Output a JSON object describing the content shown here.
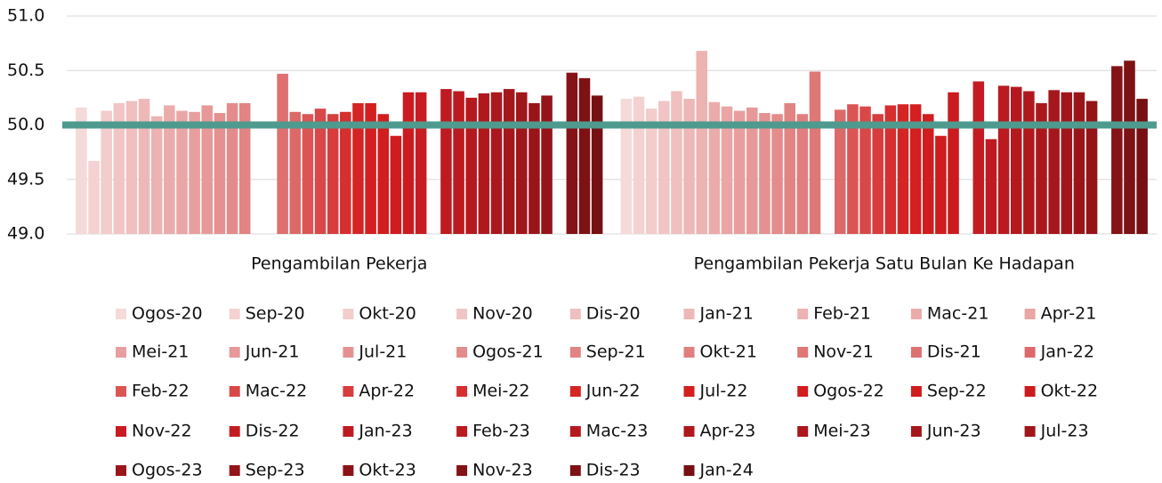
{
  "chart_data": {
    "type": "bar",
    "categories": [
      "Pengambilan Pekerja",
      "Pengambilan Pekerja Satu Bulan Ke Hadapan"
    ],
    "ylim": [
      49.0,
      51.0
    ],
    "yticks": [
      {
        "value": 49.0,
        "label": "49.0"
      },
      {
        "value": 49.5,
        "label": "49.5"
      },
      {
        "value": 50.0,
        "label": "50.0"
      },
      {
        "value": 50.5,
        "label": "50.5"
      },
      {
        "value": 51.0,
        "label": "51.0"
      }
    ],
    "grid": true,
    "reference_line": 50.0,
    "reference_color": "#4e9a8e",
    "series": [
      {
        "name": "Ogos-20",
        "color": "#f6d9d9",
        "values": [
          50.16,
          50.24
        ]
      },
      {
        "name": "Sep-20",
        "color": "#f4d2d2",
        "values": [
          49.67,
          50.26
        ]
      },
      {
        "name": "Okt-20",
        "color": "#f3cccc",
        "values": [
          50.13,
          50.15
        ]
      },
      {
        "name": "Nov-20",
        "color": "#f1c5c5",
        "values": [
          50.2,
          50.22
        ]
      },
      {
        "name": "Dis-20",
        "color": "#f0bfbf",
        "values": [
          50.22,
          50.31
        ]
      },
      {
        "name": "Jan-21",
        "color": "#eeb8b8",
        "values": [
          50.24,
          50.24
        ]
      },
      {
        "name": "Feb-21",
        "color": "#edb2b2",
        "values": [
          50.08,
          50.68
        ]
      },
      {
        "name": "Mac-21",
        "color": "#ebabab",
        "values": [
          50.18,
          50.21
        ]
      },
      {
        "name": "Apr-21",
        "color": "#eaa5a5",
        "values": [
          50.13,
          50.17
        ]
      },
      {
        "name": "Mei-21",
        "color": "#e89e9e",
        "values": [
          50.12,
          50.13
        ]
      },
      {
        "name": "Jun-21",
        "color": "#e79898",
        "values": [
          50.18,
          50.16
        ]
      },
      {
        "name": "Jul-21",
        "color": "#e59191",
        "values": [
          50.11,
          50.11
        ]
      },
      {
        "name": "Ogos-21",
        "color": "#e48b8b",
        "values": [
          50.2,
          50.1
        ]
      },
      {
        "name": "Sep-21",
        "color": "#e28484",
        "values": [
          50.2,
          50.2
        ]
      },
      {
        "name": "Okt-21",
        "color": "#e17e7e",
        "values": [
          null,
          50.1
        ]
      },
      {
        "name": "Nov-21",
        "color": "#df7777",
        "values": [
          null,
          50.49
        ]
      },
      {
        "name": "Dis-21",
        "color": "#de7070",
        "values": [
          50.47,
          null
        ]
      },
      {
        "name": "Jan-22",
        "color": "#dc6a6a",
        "values": [
          50.12,
          50.14
        ]
      },
      {
        "name": "Feb-22",
        "color": "#db5555",
        "values": [
          50.1,
          50.19
        ]
      },
      {
        "name": "Mac-22",
        "color": "#d94848",
        "values": [
          50.15,
          50.17
        ]
      },
      {
        "name": "Apr-22",
        "color": "#d83c3c",
        "values": [
          50.1,
          50.1
        ]
      },
      {
        "name": "Mei-22",
        "color": "#d62f2f",
        "values": [
          50.12,
          50.18
        ]
      },
      {
        "name": "Jun-22",
        "color": "#d52424",
        "values": [
          50.2,
          50.19
        ]
      },
      {
        "name": "Jul-22",
        "color": "#d31f1f",
        "values": [
          50.2,
          50.19
        ]
      },
      {
        "name": "Ogos-22",
        "color": "#d11d1d",
        "values": [
          50.1,
          50.1
        ]
      },
      {
        "name": "Sep-22",
        "color": "#cf1c1e",
        "values": [
          49.9,
          49.9
        ]
      },
      {
        "name": "Okt-22",
        "color": "#cc1b1f",
        "values": [
          50.3,
          50.3
        ]
      },
      {
        "name": "Nov-22",
        "color": "#c81c22",
        "values": [
          50.3,
          null
        ]
      },
      {
        "name": "Dis-22",
        "color": "#c41b22",
        "values": [
          null,
          50.4
        ]
      },
      {
        "name": "Jan-23",
        "color": "#bf1a21",
        "values": [
          50.33,
          49.87
        ]
      },
      {
        "name": "Feb-23",
        "color": "#ba1a20",
        "values": [
          50.31,
          50.36
        ]
      },
      {
        "name": "Mac-23",
        "color": "#b5191f",
        "values": [
          50.25,
          50.35
        ]
      },
      {
        "name": "Apr-23",
        "color": "#b0181e",
        "values": [
          50.29,
          50.31
        ]
      },
      {
        "name": "Mei-23",
        "color": "#ab171d",
        "values": [
          50.3,
          50.2
        ]
      },
      {
        "name": "Jun-23",
        "color": "#a6171c",
        "values": [
          50.33,
          50.32
        ]
      },
      {
        "name": "Jul-23",
        "color": "#a1161b",
        "values": [
          50.3,
          50.3
        ]
      },
      {
        "name": "Ogos-23",
        "color": "#9a151a",
        "values": [
          50.2,
          50.3
        ]
      },
      {
        "name": "Sep-23",
        "color": "#931419",
        "values": [
          50.27,
          50.22
        ]
      },
      {
        "name": "Okt-23",
        "color": "#8c1318",
        "values": [
          null,
          null
        ]
      },
      {
        "name": "Nov-23",
        "color": "#851216",
        "values": [
          50.48,
          50.54
        ]
      },
      {
        "name": "Dis-23",
        "color": "#7e1114",
        "values": [
          50.43,
          50.59
        ]
      },
      {
        "name": "Jan-24",
        "color": "#771012",
        "values": [
          50.27,
          50.24
        ]
      }
    ]
  }
}
